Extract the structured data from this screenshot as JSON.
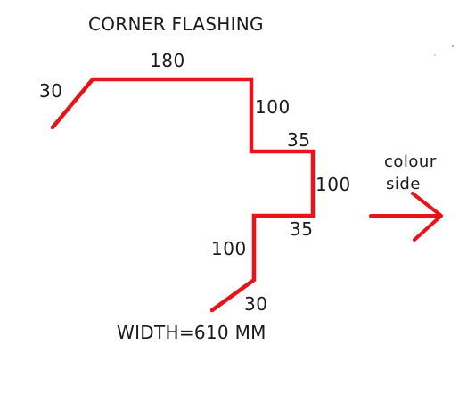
{
  "title": "CORNER FLASHING",
  "dimensions": {
    "left_lip": "30",
    "top": "180",
    "first_drop": "100",
    "first_step": "35",
    "mid_drop": "100",
    "second_step": "35",
    "lower_drop": "100",
    "bottom_lip": "30"
  },
  "width_note": "WIDTH=610 MM",
  "colour_side": {
    "line1": "colour",
    "line2": "side"
  },
  "colors": {
    "flashing_line": "#e8141c",
    "arrow": "#e8141c",
    "text": "#1a1a1a",
    "background": "#ffffff"
  }
}
